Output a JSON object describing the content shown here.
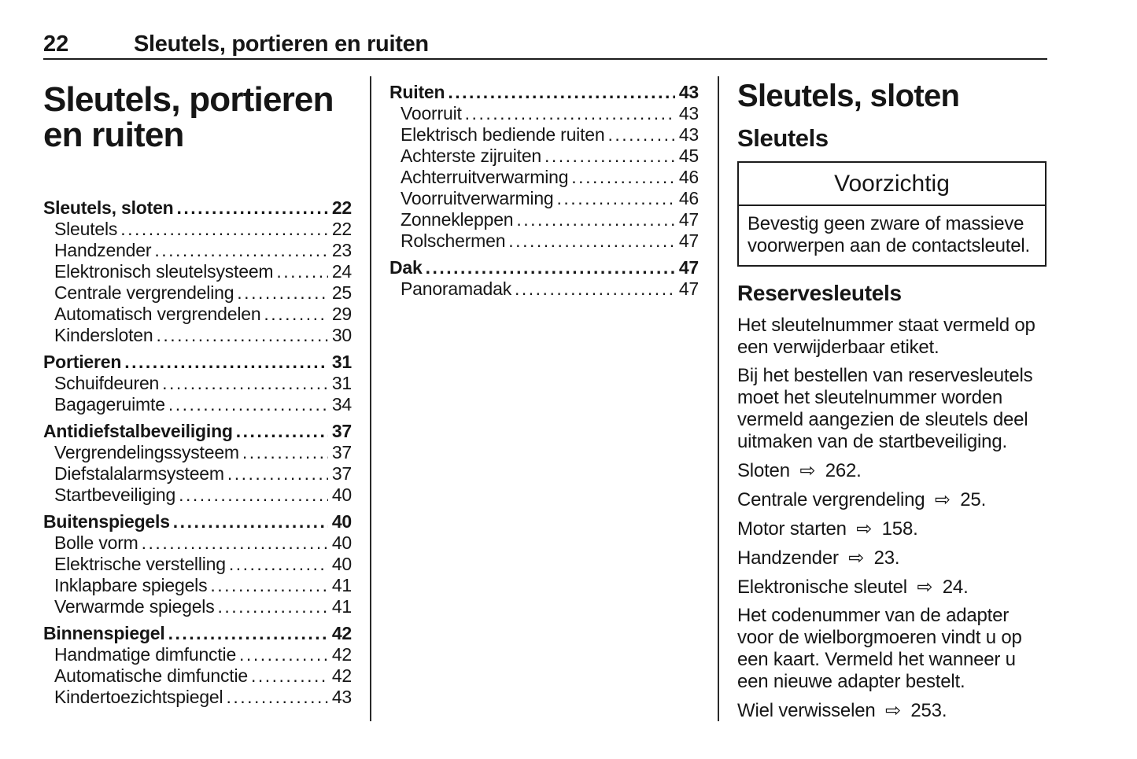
{
  "header": {
    "page_number": "22",
    "chapter_title": "Sleutels, portieren en ruiten"
  },
  "main_title_lines": [
    "Sleutels, portieren",
    "en ruiten"
  ],
  "toc": {
    "column1": [
      {
        "label": "Sleutels, sloten",
        "page": "22",
        "bold": true
      },
      {
        "label": "Sleutels",
        "page": "22"
      },
      {
        "label": "Handzender",
        "page": "23"
      },
      {
        "label": "Elektronisch sleutelsysteem",
        "page": "24"
      },
      {
        "label": "Centrale vergrendeling",
        "page": "25"
      },
      {
        "label": "Automatisch vergrendelen",
        "page": "29"
      },
      {
        "label": "Kindersloten",
        "page": "30"
      },
      {
        "label": "Portieren",
        "page": "31",
        "bold": true
      },
      {
        "label": "Schuifdeuren",
        "page": "31"
      },
      {
        "label": "Bagageruimte",
        "page": "34"
      },
      {
        "label": "Antidiefstalbeveiliging",
        "page": "37",
        "bold": true
      },
      {
        "label": "Vergrendelingssysteem",
        "page": "37"
      },
      {
        "label": "Diefstalalarmsysteem",
        "page": "37"
      },
      {
        "label": "Startbeveiliging",
        "page": "40"
      },
      {
        "label": "Buitenspiegels",
        "page": "40",
        "bold": true
      },
      {
        "label": "Bolle vorm",
        "page": "40"
      },
      {
        "label": "Elektrische verstelling",
        "page": "40"
      },
      {
        "label": "Inklapbare spiegels",
        "page": "41"
      },
      {
        "label": "Verwarmde spiegels",
        "page": "41"
      },
      {
        "label": "Binnenspiegel",
        "page": "42",
        "bold": true
      },
      {
        "label": "Handmatige dimfunctie",
        "page": "42"
      },
      {
        "label": "Automatische dimfunctie",
        "page": "42"
      },
      {
        "label": "Kindertoezichtspiegel",
        "page": "43"
      }
    ],
    "column2": [
      {
        "label": "Ruiten",
        "page": "43",
        "bold": true
      },
      {
        "label": "Voorruit",
        "page": "43"
      },
      {
        "label": "Elektrisch bediende ruiten",
        "page": "43"
      },
      {
        "label": "Achterste zijruiten",
        "page": "45"
      },
      {
        "label": "Achterruitverwarming",
        "page": "46"
      },
      {
        "label": "Voorruitverwarming",
        "page": "46"
      },
      {
        "label": "Zonnekleppen",
        "page": "47"
      },
      {
        "label": "Rolschermen",
        "page": "47"
      },
      {
        "label": "Dak",
        "page": "47",
        "bold": true
      },
      {
        "label": "Panoramadak",
        "page": "47"
      }
    ]
  },
  "content": {
    "section_title": "Sleutels, sloten",
    "subsection_title": "Sleutels",
    "caution": {
      "title": "Voorzichtig",
      "body": "Bevestig geen zware of massieve voorwerpen aan de contactsleutel."
    },
    "subheading": "Reservesleutels",
    "paragraphs": [
      {
        "text": "Het sleutelnummer staat vermeld op een verwijderbaar etiket."
      },
      {
        "text": "Bij het bestellen van reservesleutels moet het sleutelnummer worden vermeld aangezien de sleutels deel uitmaken van de startbeveiliging."
      },
      {
        "ref_label": "Sloten",
        "arrow": "⇨",
        "ref_page": "262."
      },
      {
        "ref_label": "Centrale vergrendeling",
        "arrow": "⇨",
        "ref_page": "25."
      },
      {
        "ref_label": "Motor starten",
        "arrow": "⇨",
        "ref_page": "158."
      },
      {
        "ref_label": "Handzender",
        "arrow": "⇨",
        "ref_page": "23."
      },
      {
        "ref_label": "Elektronische sleutel",
        "arrow": "⇨",
        "ref_page": "24."
      },
      {
        "text": "Het codenummer van de adapter voor de wielborgmoeren vindt u op een kaart. Vermeld het wanneer u een nieuwe adapter bestelt."
      },
      {
        "ref_label": "Wiel verwisselen",
        "arrow": "⇨",
        "ref_page": "253."
      }
    ]
  }
}
